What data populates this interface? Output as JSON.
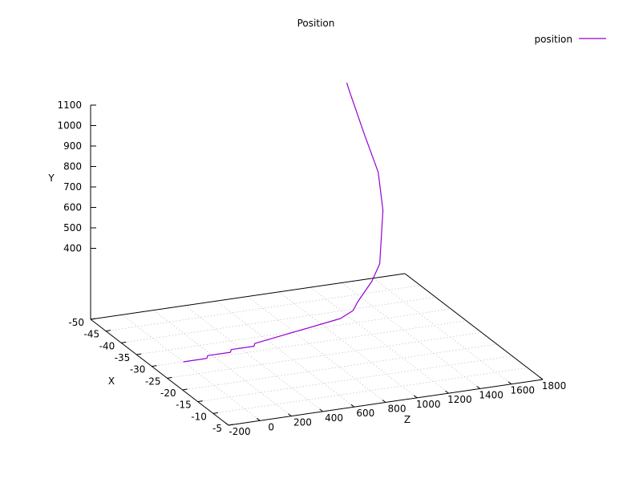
{
  "chart_data": {
    "type": "line",
    "title": "Position",
    "xlabel": "Z",
    "ylabel": "Y",
    "zlabel": "X",
    "legend_position": "top-right",
    "grid": true,
    "x_ticks": [
      "-200",
      "0",
      "200",
      "400",
      "600",
      "800",
      "1000",
      "1200",
      "1400",
      "1600",
      "1800"
    ],
    "y_ticks": [
      "400",
      "500",
      "600",
      "700",
      "800",
      "900",
      "1000",
      "1100"
    ],
    "z_ticks": [
      "-50",
      "-45",
      "-40",
      "-35",
      "-30",
      "-25",
      "-20",
      "-15",
      "-10",
      "-5"
    ],
    "xlim": [
      -200,
      1800
    ],
    "zlim": [
      -50,
      -5
    ],
    "series": [
      {
        "name": "position",
        "color": "#9400d3",
        "points": [
          {
            "z": -30,
            "x": 0,
            "y": 0
          },
          {
            "z": -30,
            "x": 150,
            "y": 0
          },
          {
            "z": -30,
            "x": 155,
            "y": 13
          },
          {
            "z": -30,
            "x": 300,
            "y": 13
          },
          {
            "z": -30,
            "x": 305,
            "y": 26
          },
          {
            "z": -30,
            "x": 450,
            "y": 26
          },
          {
            "z": -30,
            "x": 455,
            "y": 39
          },
          {
            "z": -30,
            "x": 1000,
            "y": 100
          },
          {
            "z": -30,
            "x": 1080,
            "y": 130
          },
          {
            "z": -30,
            "x": 1110,
            "y": 170
          },
          {
            "z": -30,
            "x": 1200,
            "y": 260
          },
          {
            "z": -30,
            "x": 1250,
            "y": 340
          },
          {
            "z": -30,
            "x": 1270,
            "y": 600
          },
          {
            "z": -30,
            "x": 1240,
            "y": 790
          },
          {
            "z": -30,
            "x": 1150,
            "y": 990
          },
          {
            "z": -30,
            "x": 1090,
            "y": 1130
          },
          {
            "z": -30,
            "x": 1060,
            "y": 1200
          },
          {
            "z": -30,
            "x": 1040,
            "y": 1250
          }
        ]
      }
    ]
  }
}
